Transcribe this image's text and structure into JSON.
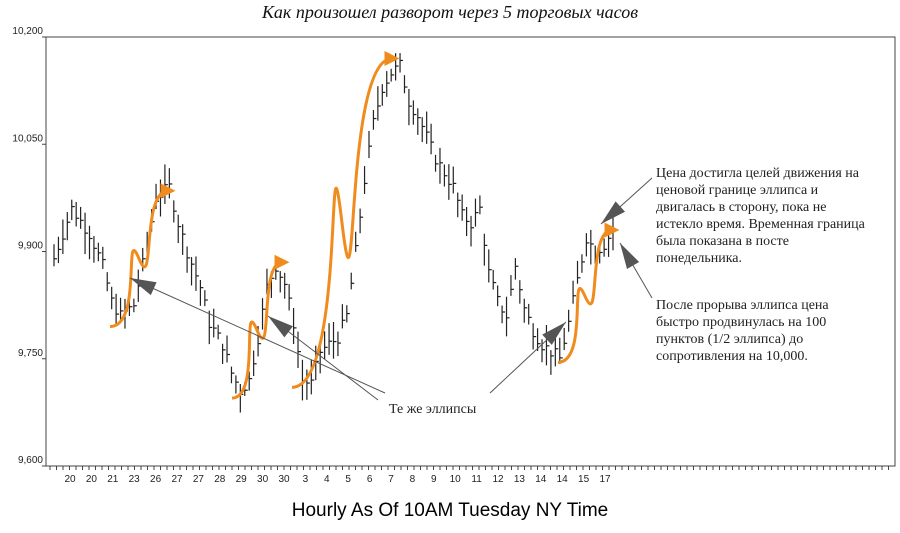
{
  "title": "Как произошел разворот через 5 торговых часов",
  "footer": "Hourly As Of 10AM Tuesday NY Time",
  "colors": {
    "bars": "#222222",
    "arrow": "#f08c1e",
    "annotation": "#555555",
    "frame": "#444444"
  },
  "annotations": {
    "top_right": "Цена достигла целей движения на ценовой границе эллипса и двигалась в сторону, пока не истекло время. Временная граница была показана в посте понедельника.",
    "bottom_right": "После прорыва эллипса цена быстро продвинулась на 100 пунктов (1/2 эллипса) до сопротивления на 10,000.",
    "same_ellipses": "Те же эллипсы"
  },
  "chart_data": {
    "type": "ohlc",
    "title": "Как произошел разворот через 5 торговых часов",
    "xlabel": "Hourly As Of 10AM Tuesday NY Time",
    "ylabel": "",
    "ylim": [
      9600,
      10200
    ],
    "y_ticks": [
      "10,200",
      "10,050",
      "9,900",
      "9,750",
      "9,600"
    ],
    "y_tick_values": [
      10200,
      10050,
      9900,
      9750,
      9600
    ],
    "x_tick_labels": [
      "20",
      "20",
      "21",
      "23",
      "26",
      "27",
      "27",
      "28",
      "29",
      "30",
      "30",
      "3",
      "4",
      "5",
      "6",
      "7",
      "8",
      "9",
      "10",
      "11",
      "12",
      "13",
      "14",
      "14",
      "15",
      "17"
    ],
    "grid": false,
    "price_path": [
      [
        0,
        9890
      ],
      [
        4,
        9960
      ],
      [
        8,
        9925
      ],
      [
        11,
        9880
      ],
      [
        13,
        9830
      ],
      [
        15,
        9810
      ],
      [
        18,
        9825
      ],
      [
        21,
        9910
      ],
      [
        23,
        9975
      ],
      [
        26,
        9990
      ],
      [
        28,
        9940
      ],
      [
        30,
        9900
      ],
      [
        33,
        9850
      ],
      [
        35,
        9800
      ],
      [
        38,
        9770
      ],
      [
        40,
        9730
      ],
      [
        42,
        9705
      ],
      [
        44,
        9720
      ],
      [
        46,
        9780
      ],
      [
        48,
        9850
      ],
      [
        50,
        9880
      ],
      [
        52,
        9855
      ],
      [
        54,
        9800
      ],
      [
        56,
        9720
      ],
      [
        58,
        9715
      ],
      [
        60,
        9760
      ],
      [
        62,
        9770
      ],
      [
        64,
        9780
      ],
      [
        66,
        9810
      ],
      [
        68,
        9900
      ],
      [
        70,
        10000
      ],
      [
        72,
        10080
      ],
      [
        74,
        10130
      ],
      [
        76,
        10150
      ],
      [
        78,
        10160
      ],
      [
        80,
        10110
      ],
      [
        82,
        10090
      ],
      [
        84,
        10060
      ],
      [
        86,
        10030
      ],
      [
        88,
        10010
      ],
      [
        90,
        9990
      ],
      [
        92,
        9950
      ],
      [
        94,
        9940
      ],
      [
        96,
        9960
      ],
      [
        98,
        9870
      ],
      [
        100,
        9830
      ],
      [
        102,
        9810
      ],
      [
        104,
        9880
      ],
      [
        106,
        9820
      ],
      [
        108,
        9790
      ],
      [
        110,
        9770
      ],
      [
        112,
        9760
      ],
      [
        114,
        9750
      ],
      [
        116,
        9800
      ],
      [
        118,
        9860
      ],
      [
        120,
        9920
      ],
      [
        122,
        9900
      ],
      [
        124,
        9910
      ],
      [
        126,
        9930
      ]
    ],
    "orange_swings": [
      {
        "from": [
          9795,
          9985
        ]
      },
      {
        "from": [
          9695,
          9885
        ]
      },
      {
        "from": [
          9710,
          10170
        ]
      },
      {
        "from": [
          9745,
          9930
        ]
      }
    ]
  }
}
